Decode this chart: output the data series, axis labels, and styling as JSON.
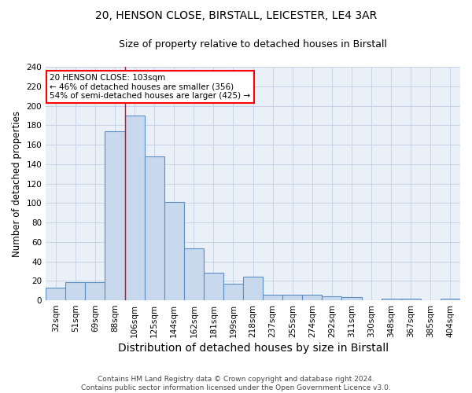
{
  "title1": "20, HENSON CLOSE, BIRSTALL, LEICESTER, LE4 3AR",
  "title2": "Size of property relative to detached houses in Birstall",
  "xlabel": "Distribution of detached houses by size in Birstall",
  "ylabel": "Number of detached properties",
  "categories": [
    "32sqm",
    "51sqm",
    "69sqm",
    "88sqm",
    "106sqm",
    "125sqm",
    "144sqm",
    "162sqm",
    "181sqm",
    "199sqm",
    "218sqm",
    "237sqm",
    "255sqm",
    "274sqm",
    "292sqm",
    "311sqm",
    "330sqm",
    "348sqm",
    "367sqm",
    "385sqm",
    "404sqm"
  ],
  "values": [
    13,
    19,
    19,
    174,
    190,
    148,
    101,
    53,
    28,
    17,
    24,
    6,
    6,
    6,
    4,
    3,
    0,
    2,
    2,
    0,
    2
  ],
  "bar_color": "#c8d9ed",
  "bar_edge_color": "#5b8ec4",
  "bar_linewidth": 0.8,
  "red_line_index": 4,
  "annotation_text": "20 HENSON CLOSE: 103sqm\n← 46% of detached houses are smaller (356)\n54% of semi-detached houses are larger (425) →",
  "annotation_box_color": "white",
  "annotation_box_edge": "red",
  "grid_color": "#c8d4e8",
  "background_color": "#eaf0f8",
  "ylim": [
    0,
    240
  ],
  "yticks": [
    0,
    20,
    40,
    60,
    80,
    100,
    120,
    140,
    160,
    180,
    200,
    220,
    240
  ],
  "footer": "Contains HM Land Registry data © Crown copyright and database right 2024.\nContains public sector information licensed under the Open Government Licence v3.0.",
  "title1_fontsize": 10,
  "title2_fontsize": 9,
  "xlabel_fontsize": 10,
  "ylabel_fontsize": 8.5,
  "tick_fontsize": 7.5,
  "footer_fontsize": 6.5,
  "annotation_fontsize": 7.5
}
